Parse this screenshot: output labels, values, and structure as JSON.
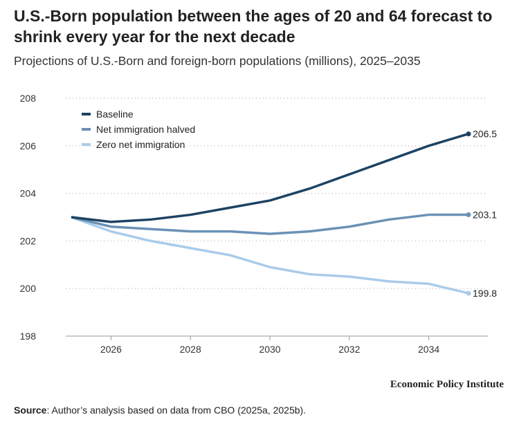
{
  "title": "U.S.-Born population between the ages of 20 and 64 forecast to shrink every year for the next decade",
  "subtitle": "Projections of U.S.-Born and foreign-born populations (millions), 2025–2035",
  "brand": "Economic Policy Institute",
  "source_label": "Source",
  "source_text": ": Author’s analysis based on data from CBO (2025a, 2025b).",
  "chart_data": {
    "type": "line",
    "x": [
      2025,
      2026,
      2027,
      2028,
      2029,
      2030,
      2031,
      2032,
      2033,
      2034,
      2035
    ],
    "xticks": [
      2026,
      2028,
      2030,
      2032,
      2034
    ],
    "yticks": [
      198,
      200,
      202,
      204,
      206,
      208
    ],
    "xlim": [
      2025,
      2035
    ],
    "ylim": [
      198,
      208
    ],
    "grid": "horizontal dotted",
    "legend_position": "top-left",
    "series": [
      {
        "name": "Baseline",
        "color": "#1d4263",
        "values": [
          203.0,
          202.8,
          202.9,
          203.1,
          203.4,
          203.7,
          204.2,
          204.8,
          205.4,
          206.0,
          206.5
        ],
        "end_label": "206.5"
      },
      {
        "name": "Net immigration halved",
        "color": "#6a91b5",
        "values": [
          203.0,
          202.6,
          202.5,
          202.4,
          202.4,
          202.3,
          202.4,
          202.6,
          202.9,
          203.1,
          203.1
        ],
        "end_label": "203.1"
      },
      {
        "name": "Zero net immigration",
        "color": "#a9cbe9",
        "values": [
          203.0,
          202.4,
          202.0,
          201.7,
          201.4,
          200.9,
          200.6,
          200.5,
          200.3,
          200.2,
          199.8
        ],
        "end_label": "199.8"
      }
    ]
  }
}
